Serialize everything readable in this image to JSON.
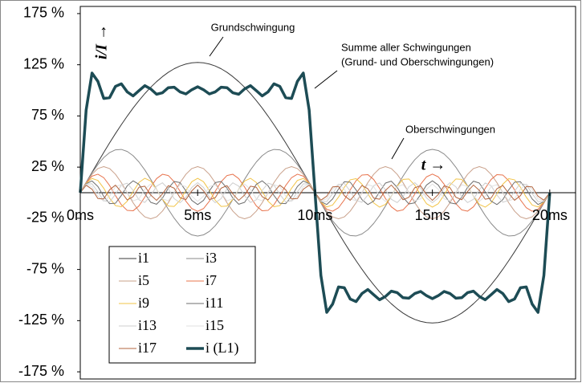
{
  "chart_data": {
    "type": "line",
    "xlabel": "t →",
    "ylabel": "i/I →",
    "annotations": [
      "Grundschwingung",
      "Summe aller Schwingungen",
      "(Grund- und Oberschwingungen)",
      "Oberschwingungen"
    ],
    "x": [
      0,
      0.25,
      0.5,
      0.75,
      1,
      1.25,
      1.5,
      1.75,
      2,
      2.25,
      2.5,
      2.75,
      3,
      3.25,
      3.5,
      3.75,
      4,
      4.25,
      4.5,
      4.75,
      5,
      5.25,
      5.5,
      5.75,
      6,
      6.25,
      6.5,
      6.75,
      7,
      7.25,
      7.5,
      7.75,
      8,
      8.25,
      8.5,
      8.75,
      9,
      9.25,
      9.5,
      9.75,
      10,
      10.25,
      10.5,
      10.75,
      11,
      11.25,
      11.5,
      11.75,
      12,
      12.25,
      12.5,
      12.75,
      13,
      13.25,
      13.5,
      13.75,
      14,
      14.25,
      14.5,
      14.75,
      15,
      15.25,
      15.5,
      15.75,
      16,
      16.25,
      16.5,
      16.75,
      17,
      17.25,
      17.5,
      17.75,
      18,
      18.25,
      18.5,
      18.75,
      19,
      19.25,
      19.5,
      19.75,
      20
    ],
    "xlim": [
      0,
      21.1
    ],
    "xticks": [
      {
        "value": 0,
        "label": "0ms"
      },
      {
        "value": 5,
        "label": "5ms"
      },
      {
        "value": 10,
        "label": "10ms"
      },
      {
        "value": 15,
        "label": "15ms"
      },
      {
        "value": 20,
        "label": "20ms"
      }
    ],
    "ylim": [
      -182,
      182
    ],
    "yticks": [
      {
        "value": -175,
        "label": "-175 %"
      },
      {
        "value": -125,
        "label": "-125 %"
      },
      {
        "value": -75,
        "label": "-75 %"
      },
      {
        "value": -25,
        "label": "-25 %"
      },
      {
        "value": 25,
        "label": "25 %"
      },
      {
        "value": 75,
        "label": "75 %"
      },
      {
        "value": 125,
        "label": "125 %"
      },
      {
        "value": 175,
        "label": "175 %"
      }
    ],
    "grid": false,
    "legend": "lower left",
    "series": [
      {
        "name": "i1",
        "color": "#3a3a3a",
        "width": 1,
        "values": [
          0,
          10,
          19.9,
          29.7,
          39.3,
          48.7,
          57.8,
          66.5,
          74.8,
          82.7,
          90,
          96.8,
          103,
          108.5,
          113.4,
          117.6,
          121.1,
          123.8,
          125.7,
          126.9,
          127.3,
          126.9,
          125.7,
          123.8,
          121.1,
          117.6,
          113.4,
          108.5,
          103,
          96.8,
          90,
          82.7,
          74.8,
          66.5,
          57.8,
          48.7,
          39.3,
          29.7,
          19.9,
          10,
          0,
          -10,
          -19.9,
          -29.7,
          -39.3,
          -48.7,
          -57.8,
          -66.5,
          -74.8,
          -82.7,
          -90,
          -96.8,
          -103,
          -108.5,
          -113.4,
          -117.6,
          -121.1,
          -123.8,
          -125.7,
          -126.9,
          -127.3,
          -126.9,
          -125.7,
          -123.8,
          -121.1,
          -117.6,
          -113.4,
          -108.5,
          -103,
          -96.8,
          -90,
          -82.7,
          -74.8,
          -66.5,
          -57.8,
          -48.7,
          -39.3,
          -29.7,
          -19.9,
          -10,
          0
        ]
      },
      {
        "name": "i3",
        "color": "#8a8a8a",
        "width": 1,
        "values": [
          0,
          9.9,
          19.3,
          27.5,
          34.3,
          39.2,
          41.9,
          42.3,
          40.3,
          36.2,
          30,
          22.2,
          13.1,
          3.3,
          -6.6,
          -16.2,
          -24.9,
          -32.2,
          -37.8,
          -41.2,
          -42.4,
          -41.2,
          -37.8,
          -32.2,
          -24.9,
          -16.2,
          -6.6,
          3.3,
          13.1,
          22.2,
          30,
          36.2,
          40.3,
          42.3,
          41.9,
          39.2,
          34.3,
          27.5,
          19.3,
          9.9,
          0,
          -9.9,
          -19.3,
          -27.5,
          -34.3,
          -39.2,
          -41.9,
          -42.3,
          -40.3,
          -36.2,
          -30,
          -22.2,
          -13.1,
          -3.3,
          6.6,
          16.2,
          24.9,
          32.2,
          37.8,
          41.2,
          42.4,
          41.2,
          37.8,
          32.2,
          24.9,
          16.2,
          6.6,
          -3.3,
          -13.1,
          -22.2,
          -30,
          -36.2,
          -40.3,
          -42.3,
          -41.9,
          -39.2,
          -34.3,
          -27.5,
          -19.3,
          -9.9,
          0
        ]
      },
      {
        "name": "i5",
        "color": "#c9a08a",
        "width": 1,
        "values": [
          0,
          9.8,
          18,
          23.6,
          25.5,
          23.6,
          18,
          9.8,
          0,
          -9.8,
          -18,
          -23.6,
          -25.5,
          -23.6,
          -18,
          -9.8,
          0,
          9.8,
          18,
          23.6,
          25.5,
          23.6,
          18,
          9.8,
          0,
          -9.8,
          -18,
          -23.6,
          -25.5,
          -23.6,
          -18,
          -9.8,
          0,
          9.8,
          18,
          23.6,
          25.5,
          23.6,
          18,
          9.8,
          0,
          -9.8,
          -18,
          -23.6,
          -25.5,
          -23.6,
          -18,
          -9.8,
          0,
          9.8,
          18,
          23.6,
          25.5,
          23.6,
          18,
          9.8,
          0,
          -9.8,
          -18,
          -23.6,
          -25.5,
          -23.6,
          -18,
          -9.8,
          0,
          9.8,
          18,
          23.6,
          25.5,
          23.6,
          18,
          9.8,
          0,
          -9.8,
          -18,
          -23.6,
          -25.5,
          -23.6,
          -18,
          -9.8,
          0
        ]
      },
      {
        "name": "i7",
        "color": "#e8744e",
        "width": 1,
        "values": [
          0,
          9.5,
          16.2,
          18.1,
          14.7,
          7,
          -2.8,
          -11.8,
          -17.3,
          -17.7,
          -12.9,
          -4.2,
          5.6,
          13.8,
          18,
          16.8,
          10.7,
          1.4,
          -8.3,
          -15.5,
          -18.2,
          -15.5,
          -8.3,
          1.4,
          10.7,
          16.8,
          18,
          13.8,
          5.6,
          -4.2,
          -12.9,
          -17.7,
          -17.3,
          -11.8,
          -2.8,
          7,
          14.7,
          18.1,
          16.2,
          9.5,
          0,
          -9.5,
          -16.2,
          -18.1,
          -14.7,
          -7,
          2.8,
          11.8,
          17.3,
          17.7,
          12.9,
          4.2,
          -5.6,
          -13.8,
          -18,
          -16.8,
          -10.7,
          -1.4,
          8.3,
          15.5,
          18.2,
          15.5,
          8.3,
          -1.4,
          -10.7,
          -16.8,
          -18,
          -13.8,
          -5.6,
          4.2,
          12.9,
          17.7,
          17.3,
          11.8,
          2.8,
          -7,
          -14.7,
          -18.1,
          -16.2,
          -9.5,
          0
        ]
      },
      {
        "name": "i9",
        "color": "#f2c447",
        "width": 1,
        "values": [
          0,
          9.2,
          13.9,
          12,
          4.4,
          -5.4,
          -12.6,
          -13.7,
          -8.3,
          1.1,
          10,
          14.1,
          11.4,
          3.3,
          -6.4,
          -13,
          -13.4,
          -7.4,
          2.2,
          10.7,
          14.1,
          10.7,
          2.2,
          -7.4,
          -13.4,
          -13,
          -6.4,
          3.3,
          11.4,
          14.1,
          10,
          1.1,
          -8.3,
          -13.7,
          -12.6,
          -5.4,
          4.4,
          12,
          13.9,
          9.2,
          0,
          -9.2,
          -13.9,
          -12,
          -4.4,
          5.4,
          12.6,
          13.7,
          8.3,
          -1.1,
          -10,
          -14.1,
          -11.4,
          -3.3,
          6.4,
          13,
          13.4,
          7.4,
          -2.2,
          -10.7,
          -14.1,
          -10.7,
          -2.2,
          7.4,
          13.4,
          13,
          6.4,
          -3.3,
          -11.4,
          -14.1,
          -10,
          -1.1,
          8.3,
          13.7,
          12.6,
          5.4,
          -4.4,
          -12,
          -13.9,
          -9.2,
          0
        ]
      },
      {
        "name": "i11",
        "color": "#6e6e6e",
        "width": 1,
        "values": [
          0,
          8.8,
          11.5,
          6.1,
          -3.6,
          -10.7,
          -10.3,
          -2.7,
          6.8,
          11.6,
          8.2,
          -0.9,
          -9.4,
          -11.3,
          -5.3,
          4.4,
          11,
          9.9,
          1.8,
          -7.5,
          -11.6,
          -7.5,
          1.8,
          9.9,
          11,
          4.4,
          -5.3,
          -11.3,
          -9.4,
          -0.9,
          8.2,
          11.6,
          6.8,
          -2.7,
          -10.3,
          -10.7,
          -3.6,
          6.1,
          11.5,
          8.8,
          0,
          -8.8,
          -11.5,
          -6.1,
          3.6,
          10.7,
          10.3,
          2.7,
          -6.8,
          -11.6,
          -8.2,
          0.9,
          9.4,
          11.3,
          5.3,
          -4.4,
          -11,
          -9.9,
          -1.8,
          7.5,
          11.6,
          7.5,
          -1.8,
          -9.9,
          -11,
          -4.4,
          5.3,
          11.3,
          9.4,
          0.9,
          -8.2,
          -11.6,
          -6.8,
          2.7,
          10.3,
          10.7,
          3.6,
          -6.1,
          -11.5,
          -8.8,
          0
        ]
      },
      {
        "name": "i13",
        "color": "#cfcfcf",
        "width": 1,
        "values": [
          0,
          8.4,
          8.7,
          0.8,
          -7.9,
          -9.1,
          -1.5,
          7.5,
          9.3,
          2.3,
          -6.9,
          -9.5,
          -3,
          6.4,
          9.7,
          3.8,
          -5.8,
          -9.8,
          -4.4,
          5.1,
          9.8,
          5.1,
          -4.4,
          -9.8,
          -5.8,
          3.8,
          9.7,
          6.4,
          -3,
          -9.5,
          -6.9,
          2.3,
          9.3,
          7.5,
          -1.5,
          -9.1,
          -7.9,
          0.8,
          8.7,
          8.4,
          0,
          -8.4,
          -8.7,
          -0.8,
          7.9,
          9.1,
          1.5,
          -7.5,
          -9.3,
          -2.3,
          6.9,
          9.5,
          3,
          -6.4,
          -9.7,
          -3.8,
          5.8,
          9.8,
          4.4,
          -5.1,
          -9.8,
          -5.1,
          4.4,
          9.8,
          5.8,
          -3.8,
          -9.7,
          -6.4,
          3,
          9.5,
          6.9,
          -2.3,
          -9.3,
          -7.5,
          1.5,
          9.1,
          7.9,
          -0.8,
          -8.7,
          -8.4,
          0
        ]
      },
      {
        "name": "i15",
        "color": "#e2e2e2",
        "width": 1,
        "values": [
          0,
          7.9,
          6,
          -3.3,
          -8.5,
          -3.3,
          6,
          7.9,
          0,
          -7.9,
          -6,
          3.3,
          8.5,
          3.3,
          -6,
          -7.9,
          0,
          7.9,
          6,
          -3.3,
          -8.5,
          -3.3,
          6,
          7.9,
          0,
          -7.9,
          -6,
          3.3,
          8.5,
          3.3,
          -6,
          -7.9,
          0,
          7.9,
          6,
          -3.3,
          -8.5,
          -3.3,
          6,
          7.9,
          0,
          -7.9,
          -6,
          3.3,
          8.5,
          3.3,
          -6,
          -7.9,
          0,
          7.9,
          6,
          -3.3,
          -8.5,
          -3.3,
          6,
          7.9,
          0,
          -7.9,
          -6,
          3.3,
          8.5,
          3.3,
          -6,
          -7.9,
          0,
          7.9,
          6,
          -3.3,
          -8.5,
          -3.3,
          6,
          7.9,
          0,
          -7.9,
          -6,
          3.3,
          8.5,
          3.3,
          -6,
          -7.9,
          0
        ]
      },
      {
        "name": "i17",
        "color": "#b3653f",
        "width": 1,
        "values": [
          0,
          7.3,
          3.4,
          -5.7,
          -6.1,
          2.9,
          7.4,
          0.6,
          -7.1,
          -3.9,
          5.3,
          6.4,
          -2.3,
          -7.5,
          -1.2,
          6.9,
          4.4,
          -4.9,
          -6.7,
          1.8,
          7.5,
          1.8,
          -6.7,
          -4.9,
          4.4,
          6.9,
          -1.2,
          -7.5,
          -2.3,
          6.4,
          5.3,
          -3.9,
          -7.1,
          0.6,
          7.4,
          2.9,
          -6.1,
          -5.7,
          3.4,
          7.3,
          0,
          -7.3,
          -3.4,
          5.7,
          6.1,
          -2.9,
          -7.4,
          -0.6,
          7.1,
          3.9,
          -5.3,
          -6.4,
          2.3,
          7.5,
          1.2,
          -6.9,
          -4.4,
          4.9,
          6.7,
          -1.8,
          -7.5,
          -1.8,
          6.7,
          4.9,
          -4.4,
          -6.9,
          1.2,
          7.5,
          2.3,
          -6.4,
          -5.3,
          3.9,
          7.1,
          -0.6,
          -7.4,
          -2.9,
          6.1,
          5.7,
          -3.4,
          -7.3,
          0
        ]
      },
      {
        "name": "i (L1)",
        "color": "#1d4c55",
        "width": 3.5,
        "values": [
          0,
          80.8,
          116.9,
          108.8,
          92.1,
          92.9,
          103.9,
          106.4,
          98.5,
          94.6,
          99.7,
          104.6,
          101.4,
          96.2,
          97.6,
          102.6,
          103.1,
          98.5,
          96.5,
          100.6,
          103.5,
          100.6,
          96.5,
          98.5,
          103.1,
          102.6,
          97.6,
          96.2,
          101.4,
          104.6,
          99.7,
          94.6,
          98.5,
          106.4,
          103.9,
          92.9,
          92.1,
          108.8,
          116.9,
          80.8,
          0,
          -80.8,
          -116.9,
          -108.8,
          -92.1,
          -92.9,
          -103.9,
          -106.4,
          -98.5,
          -94.6,
          -99.7,
          -104.6,
          -101.4,
          -96.2,
          -97.6,
          -102.6,
          -103.1,
          -98.5,
          -96.5,
          -100.6,
          -103.5,
          -100.6,
          -96.5,
          -98.5,
          -103.1,
          -102.6,
          -97.6,
          -96.2,
          -101.4,
          -104.6,
          -99.7,
          -94.6,
          -98.5,
          -106.4,
          -103.9,
          -92.9,
          -92.1,
          -108.8,
          -116.9,
          -80.8,
          0
        ]
      }
    ]
  }
}
